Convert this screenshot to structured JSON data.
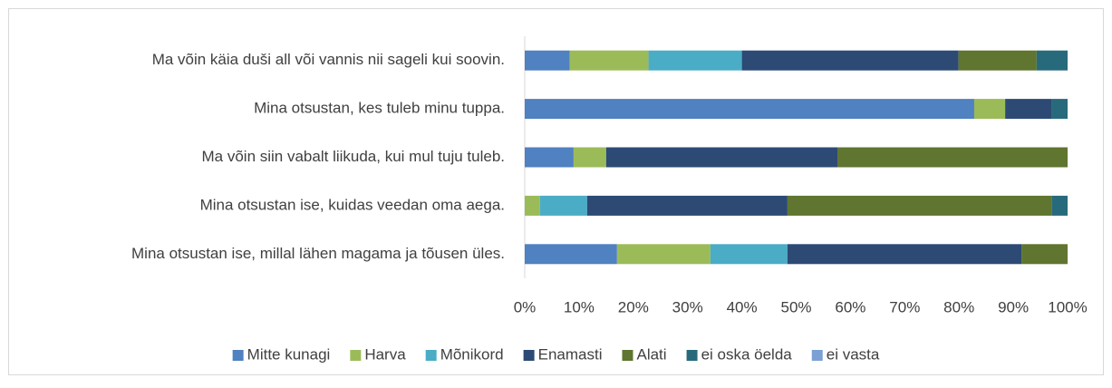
{
  "chart_data": {
    "type": "stacked_barh",
    "categories": [
      "Ma võin käia duši all või vannis nii sageli kui soovin.",
      "Mina otsustan, kes tuleb minu tuppa.",
      "Ma võin siin vabalt liikuda, kui mul tuju tuleb.",
      "Mina otsustan ise, kuidas veedan oma aega.",
      "Mina otsustan ise, millal lähen magama ja tõusen üles."
    ],
    "series": [
      {
        "name": "Mitte kunagi",
        "color": "#5081c0",
        "values": [
          8.3,
          82.8,
          9.0,
          0,
          17.0
        ]
      },
      {
        "name": "Harva",
        "color": "#9bbb59",
        "values": [
          14.5,
          5.7,
          6.0,
          2.8,
          17.2
        ]
      },
      {
        "name": "Mõnikord",
        "color": "#4bacc6",
        "values": [
          17.2,
          0,
          0,
          8.7,
          14.2
        ]
      },
      {
        "name": "Enamasti",
        "color": "#2c4a74",
        "values": [
          39.9,
          8.5,
          42.6,
          36.9,
          43.1
        ]
      },
      {
        "name": "Alati",
        "color": "#5f7530",
        "values": [
          14.4,
          0,
          42.4,
          48.7,
          8.5
        ]
      },
      {
        "name": "ei oska öelda",
        "color": "#276a7c",
        "values": [
          5.7,
          3.0,
          0,
          2.9,
          0
        ]
      },
      {
        "name": "ei vasta",
        "color": "#7ba0d3",
        "values": [
          0,
          0,
          0,
          0,
          0
        ]
      }
    ],
    "xlim": [
      0,
      100
    ],
    "xticks": [
      {
        "value": 0,
        "label": "0%"
      },
      {
        "value": 10,
        "label": "10%"
      },
      {
        "value": 20,
        "label": "20%"
      },
      {
        "value": 30,
        "label": "30%"
      },
      {
        "value": 40,
        "label": "40%"
      },
      {
        "value": 50,
        "label": "50%"
      },
      {
        "value": 60,
        "label": "60%"
      },
      {
        "value": 70,
        "label": "70%"
      },
      {
        "value": 80,
        "label": "80%"
      },
      {
        "value": 90,
        "label": "90%"
      },
      {
        "value": 100,
        "label": "100%"
      }
    ],
    "grid": false,
    "legend": "bottom"
  }
}
